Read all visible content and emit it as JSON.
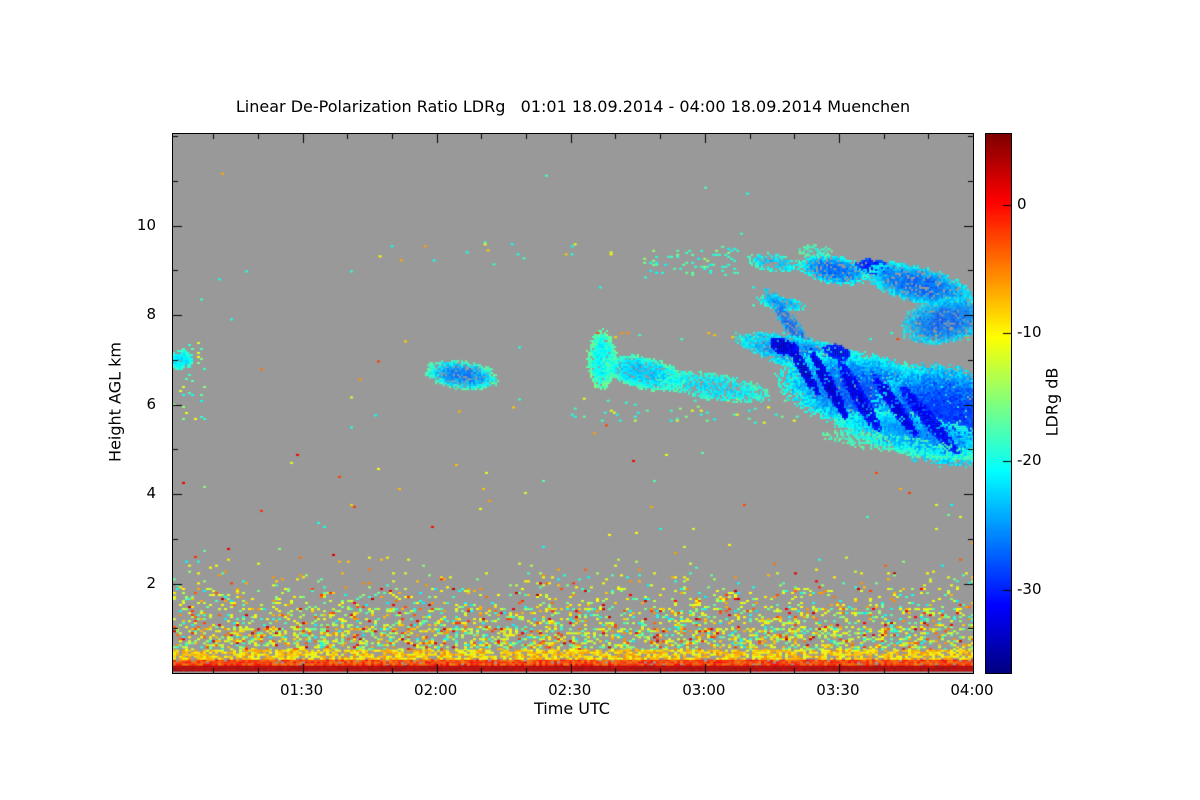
{
  "title": "Linear De-Polarization Ratio LDRg   01:01 18.09.2014 - 04:00 18.09.2014 Muenchen",
  "axes": {
    "x_label": "Time UTC",
    "y_label": "Height AGL km"
  },
  "chart_data": {
    "type": "heatmap",
    "title": "Linear De-Polarization Ratio LDRg",
    "time_start": "01:01 18.09.2014",
    "time_end": "04:00 18.09.2014",
    "station": "Muenchen",
    "xlabel": "Time UTC",
    "ylabel": "Height AGL km",
    "x_range_hours": [
      1.0167,
      4.0
    ],
    "y_range_km": [
      0,
      12.05
    ],
    "x_ticks": [
      {
        "hour": 1.5,
        "label": "01:30"
      },
      {
        "hour": 2.0,
        "label": "02:00"
      },
      {
        "hour": 2.5,
        "label": "02:30"
      },
      {
        "hour": 3.0,
        "label": "03:00"
      },
      {
        "hour": 3.5,
        "label": "03:30"
      },
      {
        "hour": 4.0,
        "label": "04:00"
      }
    ],
    "x_minor_step_hours": 0.16667,
    "y_ticks": [
      {
        "km": 2,
        "label": "2"
      },
      {
        "km": 4,
        "label": "4"
      },
      {
        "km": 6,
        "label": "6"
      },
      {
        "km": 8,
        "label": "8"
      },
      {
        "km": 10,
        "label": "10"
      }
    ],
    "y_minor_step_km": 1,
    "colorbar": {
      "label": "LDRg dB",
      "colormap": "jet",
      "min_db": -36.5,
      "max_db": 5.5,
      "ticks": [
        {
          "db": 0,
          "label": "0"
        },
        {
          "db": -10,
          "label": "-10"
        },
        {
          "db": -20,
          "label": "-20"
        },
        {
          "db": -30,
          "label": "-30"
        }
      ]
    },
    "no_data_color": "#999999",
    "seed": 20140918,
    "speckle_palette": {
      "values": [
        -11,
        -14,
        -17,
        -20,
        -7,
        -3,
        1.5
      ],
      "weights": [
        0.3,
        0.16,
        0.14,
        0.12,
        0.15,
        0.08,
        0.05
      ],
      "jitter": 1.6
    },
    "surface_lines": [
      {
        "h0": 0.04,
        "h1": 0.17,
        "db": 3.2,
        "jitter": 0.8,
        "density": 1.0
      },
      {
        "h0": 0.17,
        "h1": 0.3,
        "db": -2.5,
        "jitter": 2.6,
        "density": 0.93
      },
      {
        "h0": 0.3,
        "h1": 0.52,
        "db": -8.5,
        "jitter": 3.0,
        "density": 0.72
      }
    ],
    "noise_bands": [
      {
        "h0": 0.52,
        "h1": 1.0,
        "density": 0.4
      },
      {
        "h0": 1.0,
        "h1": 1.45,
        "density": 0.27
      },
      {
        "h0": 1.45,
        "h1": 1.9,
        "density": 0.15
      },
      {
        "h0": 1.9,
        "h1": 2.25,
        "density": 0.065
      },
      {
        "h0": 2.25,
        "h1": 2.6,
        "density": 0.02
      }
    ],
    "sparse_regions": [
      {
        "t0": 1.0167,
        "t1": 4.0,
        "h0": 2.6,
        "h1": 5.3,
        "density": 0.0035,
        "palette": {
          "values": [
            -11,
            -7,
            -3,
            -16,
            -20,
            1
          ],
          "weights": [
            0.28,
            0.22,
            0.15,
            0.15,
            0.14,
            0.06
          ],
          "jitter": 1.5
        }
      },
      {
        "t0": 1.0167,
        "t1": 4.0,
        "h0": 5.3,
        "h1": 9.0,
        "density": 0.0012,
        "palette": {
          "values": [
            -19,
            -11,
            -7,
            -3
          ],
          "weights": [
            0.4,
            0.25,
            0.2,
            0.15
          ],
          "jitter": 1.5
        }
      },
      {
        "t0": 2.55,
        "t1": 4.0,
        "h0": 7.45,
        "h1": 7.62,
        "density": 0.045,
        "palette": {
          "values": [
            -7,
            -3,
            -19,
            -11
          ],
          "weights": [
            0.35,
            0.2,
            0.3,
            0.15
          ],
          "jitter": 1.5
        }
      },
      {
        "t0": 1.75,
        "t1": 2.65,
        "h0": 9.1,
        "h1": 9.65,
        "density": 0.018,
        "palette": {
          "values": [
            -19,
            -11,
            -7
          ],
          "weights": [
            0.5,
            0.3,
            0.2
          ],
          "jitter": 1.5
        }
      },
      {
        "t0": 1.0167,
        "t1": 4.0,
        "h0": 9.65,
        "h1": 11.9,
        "density": 0.0007,
        "palette": {
          "values": [
            -11,
            -7,
            -19
          ],
          "weights": [
            0.4,
            0.3,
            0.3
          ],
          "jitter": 1.5
        }
      },
      {
        "t0": 1.0167,
        "t1": 1.13,
        "h0": 5.6,
        "h1": 7.4,
        "density": 0.05,
        "palette": {
          "values": [
            -19,
            -16,
            -11
          ],
          "weights": [
            0.5,
            0.25,
            0.25
          ],
          "jitter": 1.5
        }
      },
      {
        "t0": 2.77,
        "t1": 3.12,
        "h0": 8.9,
        "h1": 9.55,
        "density": 0.12,
        "palette": {
          "values": [
            -18,
            -20,
            -15
          ],
          "weights": [
            0.5,
            0.3,
            0.2
          ],
          "jitter": 1.2
        }
      },
      {
        "t0": 2.5,
        "t1": 3.35,
        "h0": 5.6,
        "h1": 6.2,
        "density": 0.03,
        "palette": {
          "values": [
            -19,
            -16,
            -12
          ],
          "weights": [
            0.5,
            0.3,
            0.2
          ],
          "jitter": 1.2
        }
      }
    ],
    "clouds": [
      {
        "t": 1.039,
        "h": 7.02,
        "a": 13,
        "b": 10,
        "ang": 0,
        "core": -22,
        "edge": -18,
        "density": 0.9
      },
      {
        "t": 2.091,
        "h": 6.68,
        "a": 36,
        "b": 14,
        "ang": 8,
        "core": -26,
        "edge": -17,
        "density": 0.85
      },
      {
        "t": 2.613,
        "h": 7.02,
        "a": 15,
        "b": 29,
        "ang": 0,
        "core": -21,
        "edge": -16,
        "density": 0.95
      },
      {
        "t": 2.769,
        "h": 6.73,
        "a": 42,
        "b": 16,
        "ang": 14,
        "core": -23,
        "edge": -17,
        "density": 0.9
      },
      {
        "t": 3.031,
        "h": 6.42,
        "a": 55,
        "b": 13,
        "ang": 9,
        "core": -22,
        "edge": -18,
        "density": 0.75
      },
      {
        "t": 3.254,
        "h": 9.19,
        "a": 28,
        "b": 9,
        "ang": 8,
        "core": -23,
        "edge": -18,
        "density": 0.6
      },
      {
        "t": 3.478,
        "h": 9.03,
        "a": 35,
        "b": 14,
        "ang": 10,
        "core": -27,
        "edge": -19,
        "density": 0.85
      },
      {
        "t": 3.627,
        "h": 9.1,
        "a": 18,
        "b": 8,
        "ang": 10,
        "core": -31,
        "edge": -27,
        "density": 0.9
      },
      {
        "t": 3.795,
        "h": 8.7,
        "a": 55,
        "b": 18,
        "ang": 14,
        "core": -27,
        "edge": -20,
        "density": 0.85
      },
      {
        "t": 3.41,
        "h": 9.45,
        "a": 18,
        "b": 6,
        "ang": 5,
        "core": -19,
        "edge": -17,
        "density": 0.5
      },
      {
        "t": 3.284,
        "h": 8.3,
        "a": 25,
        "b": 7,
        "ang": 10,
        "core": -24,
        "edge": -19,
        "density": 0.7
      },
      {
        "t": 3.33,
        "h": 7.7,
        "a": 50,
        "b": 8,
        "ang": 55,
        "core": -27,
        "edge": -22,
        "density": 0.6
      },
      {
        "t": 3.403,
        "h": 7.09,
        "a": 78,
        "b": 16,
        "ang": 14,
        "core": -26,
        "edge": -20,
        "density": 0.85
      },
      {
        "t": 3.9,
        "h": 7.9,
        "a": 45,
        "b": 22,
        "ang": -10,
        "core": -27,
        "edge": -21,
        "density": 0.85
      },
      {
        "t": 3.627,
        "h": 6.24,
        "a": 95,
        "b": 38,
        "ang": 12,
        "core": -28,
        "edge": -19,
        "density": 0.95
      },
      {
        "t": 3.888,
        "h": 5.79,
        "a": 70,
        "b": 48,
        "ang": 8,
        "core": -29,
        "edge": -21,
        "density": 0.96
      },
      {
        "t": 3.78,
        "h": 5.35,
        "a": 80,
        "b": 20,
        "ang": 10,
        "core": -25,
        "edge": -18,
        "density": 0.8
      },
      {
        "t": 3.291,
        "h": 7.31,
        "a": 16,
        "b": 8,
        "ang": 20,
        "core": -33.5,
        "edge": -31,
        "density": 0.9
      },
      {
        "t": 3.49,
        "h": 7.2,
        "a": 14,
        "b": 7,
        "ang": 20,
        "core": -32.5,
        "edge": -30,
        "density": 0.9
      },
      {
        "t": 3.366,
        "h": 6.8,
        "a": 30,
        "b": 5,
        "ang": 60,
        "core": -33.5,
        "edge": -31,
        "density": 0.88
      },
      {
        "t": 3.459,
        "h": 6.46,
        "a": 38,
        "b": 6,
        "ang": 62,
        "core": -33.5,
        "edge": -31,
        "density": 0.88
      },
      {
        "t": 3.571,
        "h": 6.19,
        "a": 42,
        "b": 7,
        "ang": 60,
        "core": -33,
        "edge": -30,
        "density": 0.85
      },
      {
        "t": 3.709,
        "h": 5.97,
        "a": 40,
        "b": 6,
        "ang": 55,
        "core": -33,
        "edge": -30,
        "density": 0.85
      },
      {
        "t": 3.836,
        "h": 5.66,
        "a": 45,
        "b": 7,
        "ang": 50,
        "core": -32.5,
        "edge": -30,
        "density": 0.85
      },
      {
        "t": 3.74,
        "h": 5.1,
        "a": 85,
        "b": 9,
        "ang": 8,
        "core": -19,
        "edge": -17,
        "density": 0.45
      }
    ]
  }
}
